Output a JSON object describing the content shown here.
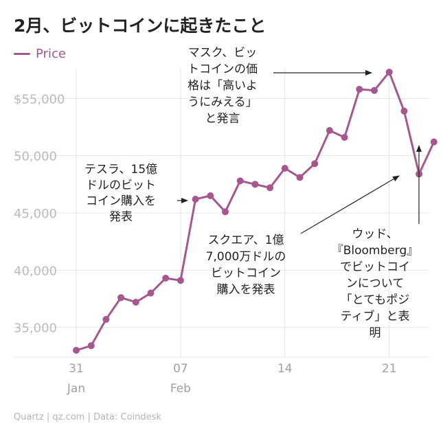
{
  "title": "2月、ビットコインに起きたこと",
  "source": "Quartz | qz.com | Data: Coindesk",
  "chart_data": {
    "type": "line",
    "ylabel": "",
    "xlabel": "",
    "ylim": [
      32500,
      58000
    ],
    "yticks": [
      "$55,000",
      "50,000",
      "45,000",
      "40,000",
      "35,000"
    ],
    "yticks_values": [
      55000,
      50000,
      45000,
      40000,
      35000
    ],
    "xticks": [
      {
        "day": 0,
        "label": "31",
        "sublabel": "Jan"
      },
      {
        "day": 7,
        "label": "07",
        "sublabel": "Feb"
      },
      {
        "day": 14,
        "label": "14",
        "sublabel": ""
      },
      {
        "day": 21,
        "label": "21",
        "sublabel": ""
      }
    ],
    "grid": "horizontal",
    "legend_position": "top-left",
    "series": [
      {
        "name": "Price",
        "color": "#a6578e",
        "dates": [
          "Jan 31",
          "Feb 1",
          "Feb 2",
          "Feb 3",
          "Feb 4",
          "Feb 5",
          "Feb 6",
          "Feb 7",
          "Feb 8",
          "Feb 9",
          "Feb 10",
          "Feb 11",
          "Feb 12",
          "Feb 13",
          "Feb 14",
          "Feb 15",
          "Feb 16",
          "Feb 17",
          "Feb 18",
          "Feb 19",
          "Feb 20",
          "Feb 21",
          "Feb 22",
          "Feb 23",
          "Feb 24"
        ],
        "values": [
          33000,
          33400,
          35700,
          37600,
          37200,
          38000,
          39300,
          39100,
          46200,
          46500,
          45100,
          47800,
          47500,
          47200,
          48900,
          48100,
          49300,
          52200,
          51600,
          55800,
          55700,
          57300,
          53900,
          48400,
          51200
        ]
      }
    ],
    "annotations": [
      {
        "text": [
          "テスラ、15億",
          "ドルのビット",
          "コイン購入を",
          "発表"
        ],
        "target_day": 8
      },
      {
        "text": [
          "マスク、ビッ",
          "トコインの価",
          "格は「高いよ",
          "うにみえる」",
          "と発言"
        ],
        "target_day": 21
      },
      {
        "text": [
          "スクエア、1億",
          "7,000万ドルの",
          "ビットコイン",
          "購入を発表"
        ],
        "target_day": 23
      },
      {
        "text": [
          "ウッド、",
          "『Bloomberg』",
          "でビットコイ",
          "ンについて",
          "「とてもポジ",
          "ティブ」と表",
          "明"
        ],
        "target_day": 24
      }
    ]
  }
}
